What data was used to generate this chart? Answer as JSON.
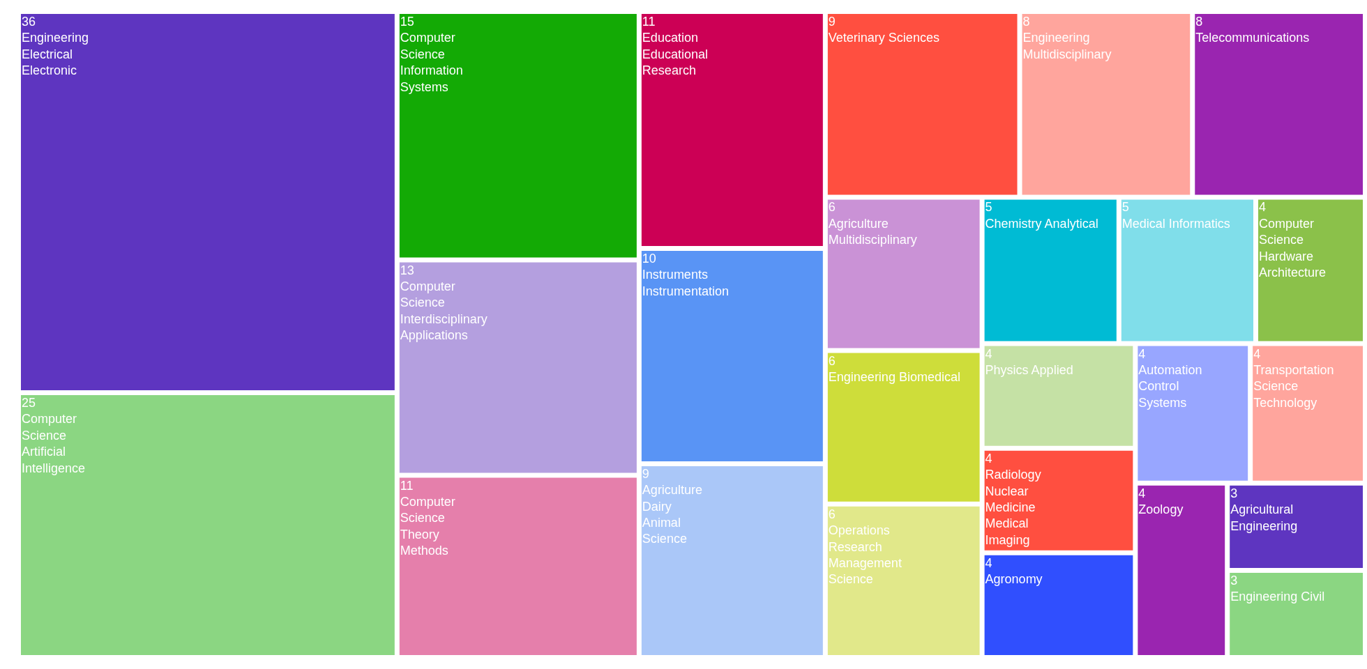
{
  "chart_data": {
    "type": "other",
    "data_labels": true,
    "categories": [
      "Engineering Electrical Electronic",
      "Computer Science Artificial Intelligence",
      "Computer Science Information Systems",
      "Computer Science Interdisciplinary Applications",
      "Computer Science Theory Methods",
      "Education Educational Research",
      "Instruments Instrumentation",
      "Agriculture Dairy Animal Science",
      "Veterinary Sciences",
      "Engineering Multidisciplinary",
      "Telecommunications",
      "Agriculture Multidisciplinary",
      "Engineering Biomedical",
      "Operations Research Management Science",
      "Chemistry Analytical",
      "Medical Informatics",
      "Computer Science Hardware Architecture",
      "Physics Applied",
      "Radiology Nuclear Medicine Medical Imaging",
      "Agronomy",
      "Automation Control Systems",
      "Transportation Science Technology",
      "Zoology",
      "Agricultural Engineering",
      "Engineering Civil"
    ],
    "values": [
      36,
      25,
      15,
      13,
      11,
      11,
      10,
      9,
      9,
      8,
      8,
      6,
      6,
      6,
      5,
      5,
      4,
      4,
      4,
      4,
      4,
      4,
      4,
      3,
      3
    ],
    "colors": [
      "#5e35c0",
      "#8bd682",
      "#13aa05",
      "#b49fdf",
      "#e57fab",
      "#cc0055",
      "#5994f5",
      "#aac7f8",
      "#ff4f40",
      "#ffa59d",
      "#9a25b0",
      "#ca92d6",
      "#cedd3a",
      "#e1e88a",
      "#00bbd4",
      "#80deea",
      "#8bc14a",
      "#c5e1a5",
      "#ff4f40",
      "#304ffe",
      "#98a6ff",
      "#ffa59d",
      "#9a25b0",
      "#5e35c0",
      "#8bd682"
    ]
  }
}
